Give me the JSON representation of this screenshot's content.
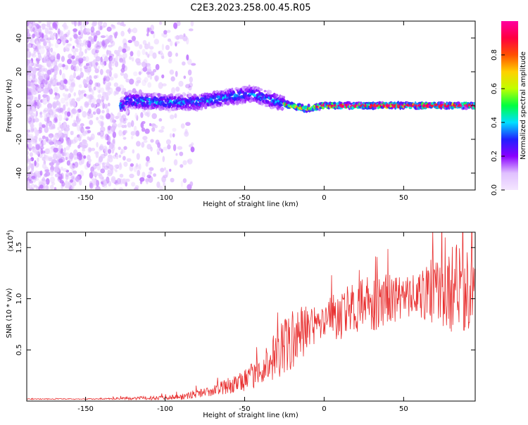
{
  "title": "C2E3.2023.258.00.45.R05",
  "chart_data": [
    {
      "type": "heatmap",
      "xlabel": "Height of straight line (km)",
      "ylabel": "Frequency (Hz)",
      "xlim": [
        -187,
        95
      ],
      "ylim": [
        -50,
        50
      ],
      "xticks": [
        -150,
        -100,
        -50,
        0,
        50
      ],
      "yticks": [
        -40,
        -20,
        0,
        20,
        40
      ],
      "colorbar": {
        "label": "Normalized spectral amplitude",
        "range": [
          0,
          1
        ],
        "ticks": [
          "0.0",
          "0.2",
          "0.4",
          "0.6",
          "0.8"
        ],
        "stops": [
          "#f4e6ff",
          "#e0c0ff",
          "#8a00ff",
          "#2020ff",
          "#00e0ff",
          "#00ff40",
          "#c0ff00",
          "#ffd000",
          "#ff5000",
          "#ff0040",
          "#ff00a0"
        ]
      },
      "ridge": [
        {
          "x": -125,
          "y": 3
        },
        {
          "x": -100,
          "y": 2
        },
        {
          "x": -80,
          "y": 2
        },
        {
          "x": -60,
          "y": 5
        },
        {
          "x": -45,
          "y": 7
        },
        {
          "x": -35,
          "y": 4
        },
        {
          "x": -25,
          "y": 1
        },
        {
          "x": -12,
          "y": -2
        },
        {
          "x": 0,
          "y": 0
        },
        {
          "x": 95,
          "y": 0
        }
      ],
      "grid": false
    },
    {
      "type": "line",
      "xlabel": "Height of straight line (km)",
      "ylabel": "SNR (10 * v/v)",
      "yscale_label": "(x10",
      "yscale_exp": "4",
      "yscale_close": ")",
      "xlim": [
        -187,
        95
      ],
      "ylim": [
        0,
        1.65
      ],
      "xticks": [
        -150,
        -100,
        -50,
        0,
        50
      ],
      "yticks": [
        "0.5",
        "1.0",
        "1.5"
      ],
      "ytick_values": [
        0.5,
        1.0,
        1.5
      ],
      "series": [
        {
          "color": "#e83030",
          "x": [
            -187,
            -170,
            -150,
            -130,
            -110,
            -100,
            -90,
            -80,
            -70,
            -60,
            -50,
            -40,
            -30,
            -20,
            -10,
            0,
            10,
            20,
            30,
            40,
            50,
            60,
            70,
            80,
            90,
            95
          ],
          "y": [
            0.02,
            0.02,
            0.02,
            0.025,
            0.03,
            0.035,
            0.04,
            0.07,
            0.1,
            0.15,
            0.2,
            0.3,
            0.45,
            0.6,
            0.7,
            0.8,
            0.85,
            0.9,
            0.95,
            1.0,
            1.0,
            1.05,
            1.05,
            1.1,
            1.1,
            1.1
          ],
          "amplitude": [
            0.005,
            0.005,
            0.005,
            0.01,
            0.02,
            0.02,
            0.03,
            0.04,
            0.05,
            0.08,
            0.1,
            0.15,
            0.25,
            0.3,
            0.25,
            0.2,
            0.25,
            0.25,
            0.3,
            0.25,
            0.2,
            0.25,
            0.3,
            0.45,
            0.45,
            0.45
          ]
        }
      ],
      "grid": false
    }
  ]
}
